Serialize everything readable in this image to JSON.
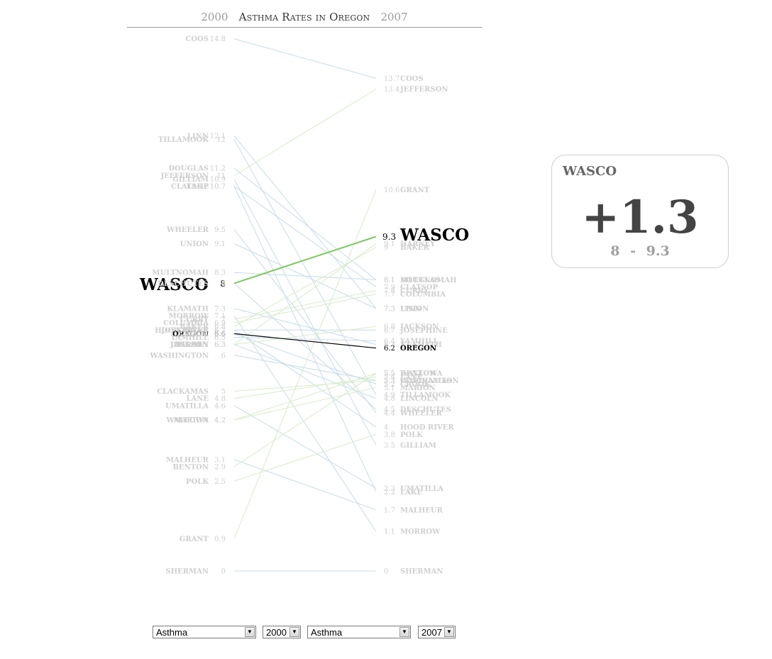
{
  "title": {
    "left_year": "2000",
    "text": "Asthma Rates in Oregon",
    "right_year": "2007"
  },
  "colors": {
    "faint_text": "#cfcfcf",
    "focus_line": "#7dc95e",
    "state_line": "#000000",
    "blue_line": "#c7dbe8",
    "green_line": "#d6ecc9",
    "card_text": "#444444"
  },
  "selected": {
    "name": "WASCO",
    "left_value": "8",
    "right_value": "9.3",
    "delta": "+1.3",
    "range_dash": "-"
  },
  "state_row": {
    "name": "OREGON",
    "left_value": "6.6",
    "right_value": "6.2"
  },
  "controls": {
    "left_measure": "Asthma",
    "left_year": "2000",
    "right_measure": "Asthma",
    "right_year": "2007"
  },
  "chart_data": {
    "type": "slope",
    "title": "Asthma Rates in Oregon",
    "x_labels": [
      "2000",
      "2007"
    ],
    "ylim": [
      0,
      14.8
    ],
    "left": [
      {
        "name": "COOS",
        "value": "14.8"
      },
      {
        "name": "LINN",
        "value": "12.1"
      },
      {
        "name": "TILLAMOOK",
        "value": "12"
      },
      {
        "name": "DOUGLAS",
        "value": "11.2"
      },
      {
        "name": "JEFFERSON",
        "value": "11"
      },
      {
        "name": "GILLIAM",
        "value": "10.9"
      },
      {
        "name": "LAKE",
        "value": "10.7"
      },
      {
        "name": "CLATSOP",
        "value": "10.7"
      },
      {
        "name": "WHEELER",
        "value": "9.5"
      },
      {
        "name": "UNION",
        "value": "9.1"
      },
      {
        "name": "MULTNOMAH",
        "value": "8.3"
      },
      {
        "name": "WASCO",
        "value": "8"
      },
      {
        "name": "DESCHUTES",
        "value": "8"
      },
      {
        "name": "KLAMATH",
        "value": "7.3"
      },
      {
        "name": "MORROW",
        "value": "7.1"
      },
      {
        "name": "CURRY",
        "value": "7"
      },
      {
        "name": "COLUMBIA",
        "value": "6.9"
      },
      {
        "name": "BAKER",
        "value": "6.8"
      },
      {
        "name": "JOSEPHINE",
        "value": "6.7"
      },
      {
        "name": "HOOD RIVER",
        "value": "6.7"
      },
      {
        "name": "OREGON",
        "value": "6.6"
      },
      {
        "name": "CROOK",
        "value": "6.6"
      },
      {
        "name": "YAMHILL",
        "value": "6.5"
      },
      {
        "name": "LINCOLN",
        "value": "6.3"
      },
      {
        "name": "JACKSON",
        "value": "6.3"
      },
      {
        "name": "HARNEY",
        "value": "6.3"
      },
      {
        "name": "WASHINGTON",
        "value": "6"
      },
      {
        "name": "CLACKAMAS",
        "value": "5"
      },
      {
        "name": "LANE",
        "value": "4.8"
      },
      {
        "name": "UMATILLA",
        "value": "4.6"
      },
      {
        "name": "WALLOWA",
        "value": "4.2"
      },
      {
        "name": "MARION",
        "value": "4.2"
      },
      {
        "name": "MALHEUR",
        "value": "3.1"
      },
      {
        "name": "BENTON",
        "value": "2.9"
      },
      {
        "name": "POLK",
        "value": "2.5"
      },
      {
        "name": "GRANT",
        "value": "0.9"
      },
      {
        "name": "SHERMAN",
        "value": "0"
      }
    ],
    "right": [
      {
        "name": "COOS",
        "value": "13.7"
      },
      {
        "name": "JEFFERSON",
        "value": "13.4"
      },
      {
        "name": "GRANT",
        "value": "10.6"
      },
      {
        "name": "WASCO",
        "value": "9.3"
      },
      {
        "name": "HARNEY",
        "value": "9.1"
      },
      {
        "name": "BAKER",
        "value": "9"
      },
      {
        "name": "MULTNOMAH",
        "value": "8.1"
      },
      {
        "name": "DOUGLAS",
        "value": "8.1"
      },
      {
        "name": "CLATSOP",
        "value": "7.9"
      },
      {
        "name": "CURRY",
        "value": "7.8"
      },
      {
        "name": "COLUMBIA",
        "value": "7.7"
      },
      {
        "name": "UNION",
        "value": "7.3"
      },
      {
        "name": "LINN",
        "value": "7.3"
      },
      {
        "name": "JACKSON",
        "value": "6.8"
      },
      {
        "name": "JOSEPHINE",
        "value": "6.7"
      },
      {
        "name": "YAMHILL",
        "value": "6.4"
      },
      {
        "name": "KLAMATH",
        "value": "6.3"
      },
      {
        "name": "OREGON",
        "value": "6.2"
      },
      {
        "name": "WALLOWA",
        "value": "5.5"
      },
      {
        "name": "BENTON",
        "value": "5.5"
      },
      {
        "name": "LANE",
        "value": "5.4"
      },
      {
        "name": "CLACKAMAS",
        "value": "5.3"
      },
      {
        "name": "WASHINGTON",
        "value": "5.3"
      },
      {
        "name": "CROOK",
        "value": "5.2"
      },
      {
        "name": "MARION",
        "value": "5.1"
      },
      {
        "name": "TILLAMOOK",
        "value": "4.9"
      },
      {
        "name": "LINCOLN",
        "value": "4.8"
      },
      {
        "name": "DESCHUTES",
        "value": "4.5"
      },
      {
        "name": "WHEELER",
        "value": "4.4"
      },
      {
        "name": "HOOD RIVER",
        "value": "4"
      },
      {
        "name": "POLK",
        "value": "3.8"
      },
      {
        "name": "GILLIAM",
        "value": "3.5"
      },
      {
        "name": "UMATILLA",
        "value": "2.3"
      },
      {
        "name": "LAKE",
        "value": "2.2"
      },
      {
        "name": "MALHEUR",
        "value": "1.7"
      },
      {
        "name": "MORROW",
        "value": "1.1"
      },
      {
        "name": "SHERMAN",
        "value": "0"
      }
    ]
  }
}
